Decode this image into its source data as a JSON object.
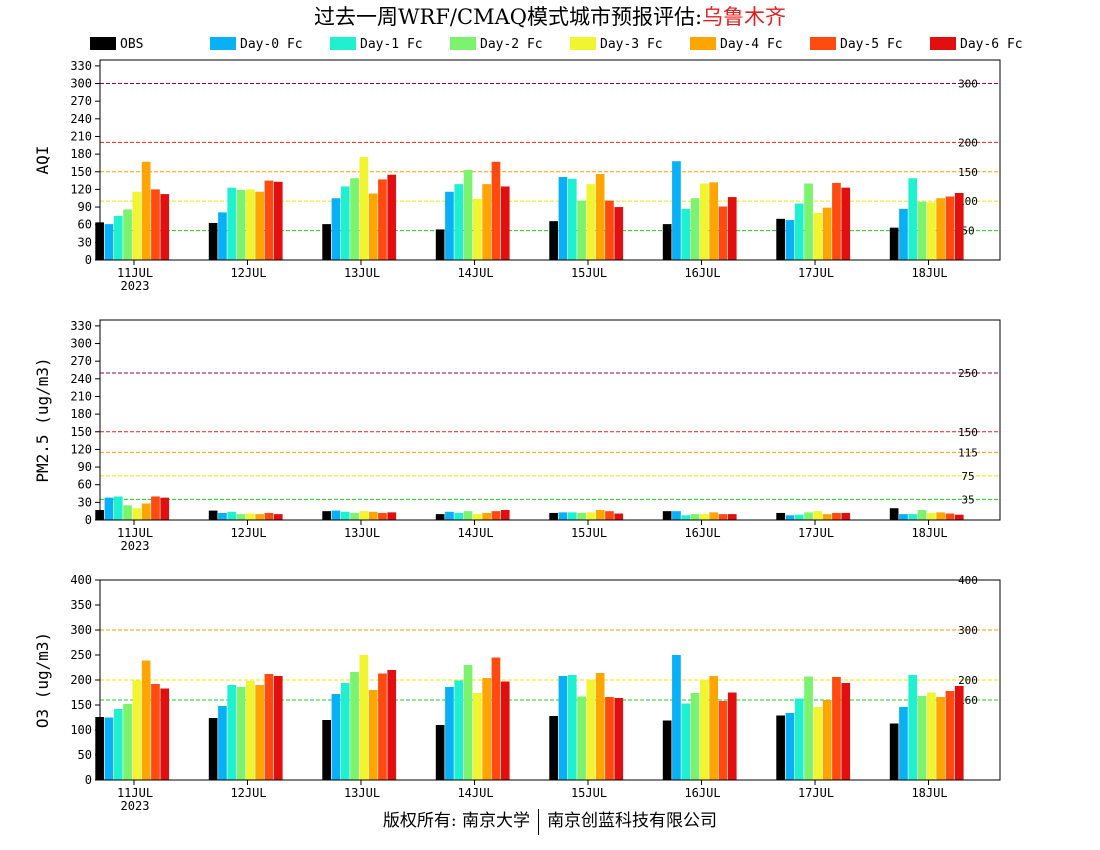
{
  "title": {
    "main": "过去一周WRF/CMAQ模式城市预报评估:",
    "city": "乌鲁木齐",
    "city_color": "#e02020"
  },
  "legend": [
    {
      "name": "OBS",
      "color": "#000000"
    },
    {
      "name": "Day-0 Fc",
      "color": "#0ab0f5"
    },
    {
      "name": "Day-1 Fc",
      "color": "#1ef0d0"
    },
    {
      "name": "Day-2 Fc",
      "color": "#7cf36e"
    },
    {
      "name": "Day-3 Fc",
      "color": "#f0f530"
    },
    {
      "name": "Day-4 Fc",
      "color": "#ffa500"
    },
    {
      "name": "Day-5 Fc",
      "color": "#ff4a10"
    },
    {
      "name": "Day-6 Fc",
      "color": "#e10f0f"
    }
  ],
  "footer": {
    "left": "版权所有: 南京大学",
    "right": "南京创蓝科技有限公司"
  },
  "chart_data": [
    {
      "type": "bar",
      "ylabel": "AQI",
      "categories": [
        "11JUL",
        "12JUL",
        "13JUL",
        "14JUL",
        "15JUL",
        "16JUL",
        "17JUL",
        "18JUL"
      ],
      "year_label": "2023",
      "ylim": [
        0,
        340
      ],
      "yticks": [
        0,
        30,
        60,
        90,
        120,
        150,
        180,
        210,
        240,
        270,
        300,
        330
      ],
      "thresholds": [
        {
          "value": 50,
          "label": "50",
          "color": "#22cc22"
        },
        {
          "value": 100,
          "label": "100",
          "color": "#e8e800"
        },
        {
          "value": 150,
          "label": "150",
          "color": "#ff9900"
        },
        {
          "value": 200,
          "label": "200",
          "color": "#dd2222"
        },
        {
          "value": 300,
          "label": "300",
          "color": "#990033"
        }
      ],
      "series": [
        {
          "name": "OBS",
          "values": [
            64,
            63,
            61,
            52,
            66,
            61,
            70,
            55
          ]
        },
        {
          "name": "Day-0 Fc",
          "values": [
            61,
            81,
            105,
            116,
            141,
            168,
            68,
            87
          ]
        },
        {
          "name": "Day-1 Fc",
          "values": [
            75,
            123,
            125,
            129,
            138,
            87,
            96,
            139
          ]
        },
        {
          "name": "Day-2 Fc",
          "values": [
            86,
            119,
            139,
            153,
            101,
            105,
            130,
            99
          ]
        },
        {
          "name": "Day-3 Fc",
          "values": [
            116,
            120,
            175,
            104,
            129,
            130,
            80,
            98
          ]
        },
        {
          "name": "Day-4 Fc",
          "values": [
            167,
            116,
            113,
            129,
            146,
            132,
            89,
            105
          ]
        },
        {
          "name": "Day-5 Fc",
          "values": [
            120,
            135,
            137,
            167,
            101,
            91,
            131,
            108
          ]
        },
        {
          "name": "Day-6 Fc",
          "values": [
            112,
            133,
            145,
            125,
            90,
            107,
            123,
            114
          ]
        }
      ]
    },
    {
      "type": "bar",
      "ylabel": "PM2.5 (ug/m3)",
      "categories": [
        "11JUL",
        "12JUL",
        "13JUL",
        "14JUL",
        "15JUL",
        "16JUL",
        "17JUL",
        "18JUL"
      ],
      "year_label": "2023",
      "ylim": [
        0,
        340
      ],
      "yticks": [
        0,
        30,
        60,
        90,
        120,
        150,
        180,
        210,
        240,
        270,
        300,
        330
      ],
      "thresholds": [
        {
          "value": 35,
          "label": "35",
          "color": "#22cc22"
        },
        {
          "value": 75,
          "label": "75",
          "color": "#e8e800"
        },
        {
          "value": 115,
          "label": "115",
          "color": "#ff9900"
        },
        {
          "value": 150,
          "label": "150",
          "color": "#dd2222"
        },
        {
          "value": 250,
          "label": "250",
          "color": "#990033"
        }
      ],
      "series": [
        {
          "name": "OBS",
          "values": [
            17,
            16,
            15,
            10,
            12,
            15,
            12,
            20
          ]
        },
        {
          "name": "Day-0 Fc",
          "values": [
            38,
            12,
            16,
            14,
            13,
            15,
            8,
            10
          ]
        },
        {
          "name": "Day-1 Fc",
          "values": [
            40,
            14,
            14,
            12,
            13,
            8,
            9,
            10
          ]
        },
        {
          "name": "Day-2 Fc",
          "values": [
            25,
            10,
            12,
            15,
            12,
            10,
            13,
            17
          ]
        },
        {
          "name": "Day-3 Fc",
          "values": [
            20,
            11,
            15,
            10,
            13,
            10,
            15,
            12
          ]
        },
        {
          "name": "Day-4 Fc",
          "values": [
            28,
            10,
            14,
            12,
            17,
            13,
            10,
            13
          ]
        },
        {
          "name": "Day-5 Fc",
          "values": [
            40,
            12,
            12,
            15,
            15,
            10,
            12,
            11
          ]
        },
        {
          "name": "Day-6 Fc",
          "values": [
            38,
            10,
            13,
            17,
            11,
            10,
            12,
            9
          ]
        }
      ]
    },
    {
      "type": "bar",
      "ylabel": "O3 (ug/m3)",
      "categories": [
        "11JUL",
        "12JUL",
        "13JUL",
        "14JUL",
        "15JUL",
        "16JUL",
        "17JUL",
        "18JUL"
      ],
      "year_label": "2023",
      "ylim": [
        0,
        400
      ],
      "yticks": [
        0,
        50,
        100,
        150,
        200,
        250,
        300,
        350,
        400
      ],
      "thresholds": [
        {
          "value": 160,
          "label": "160",
          "color": "#22cc22"
        },
        {
          "value": 200,
          "label": "200",
          "color": "#e8e800"
        },
        {
          "value": 300,
          "label": "300",
          "color": "#ff9900"
        },
        {
          "value": 400,
          "label": "400",
          "color": "#dd2222"
        }
      ],
      "series": [
        {
          "name": "OBS",
          "values": [
            126,
            124,
            120,
            110,
            128,
            119,
            129,
            113
          ]
        },
        {
          "name": "Day-0 Fc",
          "values": [
            125,
            148,
            172,
            186,
            208,
            250,
            134,
            146
          ]
        },
        {
          "name": "Day-1 Fc",
          "values": [
            142,
            190,
            194,
            199,
            210,
            153,
            163,
            210
          ]
        },
        {
          "name": "Day-2 Fc",
          "values": [
            152,
            186,
            216,
            230,
            167,
            174,
            207,
            168
          ]
        },
        {
          "name": "Day-3 Fc",
          "values": [
            199,
            198,
            250,
            174,
            200,
            200,
            146,
            175
          ]
        },
        {
          "name": "Day-4 Fc",
          "values": [
            239,
            190,
            180,
            204,
            214,
            208,
            160,
            166
          ]
        },
        {
          "name": "Day-5 Fc",
          "values": [
            192,
            212,
            213,
            245,
            166,
            158,
            206,
            178
          ]
        },
        {
          "name": "Day-6 Fc",
          "values": [
            183,
            208,
            220,
            197,
            164,
            175,
            194,
            188
          ]
        }
      ]
    }
  ]
}
